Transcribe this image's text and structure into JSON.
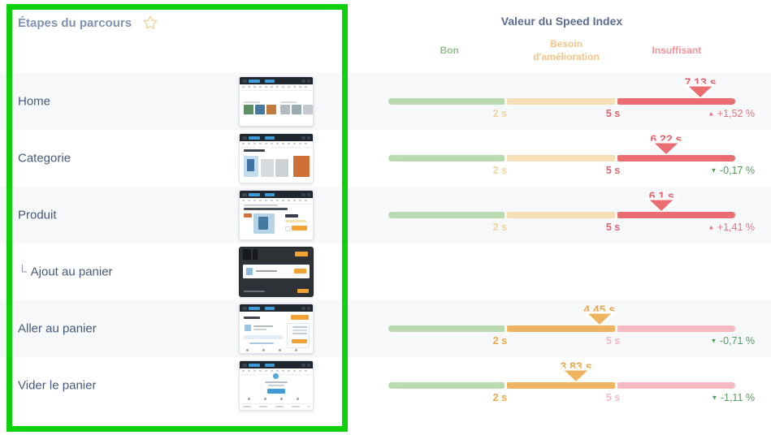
{
  "panel": {
    "title": "Étapes du parcours"
  },
  "speed_index": {
    "title": "Valeur du Speed Index",
    "zone_labels": {
      "good": "Bon",
      "warn": "Besoin d'amélioration",
      "bad": "Insuffisant"
    },
    "ticks": {
      "t1": "2 s",
      "t2": "5 s"
    },
    "scale": {
      "t1_seconds": 2,
      "t2_seconds": 5
    }
  },
  "rows": [
    {
      "label": "Home",
      "value_seconds": 7.13,
      "value_label": "7,13 s",
      "zone": "bad",
      "delta": "+1,52 %",
      "delta_direction": "up",
      "delta_tone": "bad"
    },
    {
      "label": "Categorie",
      "value_seconds": 6.22,
      "value_label": "6,22 s",
      "zone": "bad",
      "delta": "-0,17 %",
      "delta_direction": "down",
      "delta_tone": "good"
    },
    {
      "label": "Produit",
      "value_seconds": 6.1,
      "value_label": "6,1 s",
      "zone": "bad",
      "delta": "+1,41 %",
      "delta_direction": "up",
      "delta_tone": "bad"
    },
    {
      "label": "Ajout au panier",
      "prefix": "└",
      "value_seconds": null,
      "value_label": "",
      "zone": null,
      "delta": "",
      "delta_direction": null,
      "delta_tone": null
    },
    {
      "label": "Aller au panier",
      "value_seconds": 4.45,
      "value_label": "4,45 s",
      "zone": "warn",
      "delta": "-0,71 %",
      "delta_direction": "down",
      "delta_tone": "good"
    },
    {
      "label": "Vider le panier",
      "value_seconds": 3.83,
      "value_label": "3,83 s",
      "zone": "warn",
      "delta": "-1,11 %",
      "delta_direction": "down",
      "delta_tone": "good"
    }
  ],
  "colors": {
    "panel_title": "#7e93b4",
    "header_text": "#5a6c91",
    "step_label": "#44597c",
    "row_stripe": "#f7f8fa",
    "zone_good_label": "#93c08d",
    "zone_warn_label": "#f2c489",
    "zone_bad_label": "#f4929a",
    "bar_good_muted": "#b9d9b1",
    "bar_warn_muted": "#f6dfb6",
    "bar_warn_active": "#eeb45f",
    "bar_bad_muted": "#f4bac0",
    "bar_bad_active": "#ea6d71",
    "value_bad": "#e4626c",
    "value_warn": "#e7a84c",
    "tick_warn_muted": "#f2d4a0",
    "delta_good": "#4f9e58",
    "delta_bad": "#e4737c",
    "highlight_box": "#0dd10d",
    "star_outline": "#eed5a0"
  }
}
